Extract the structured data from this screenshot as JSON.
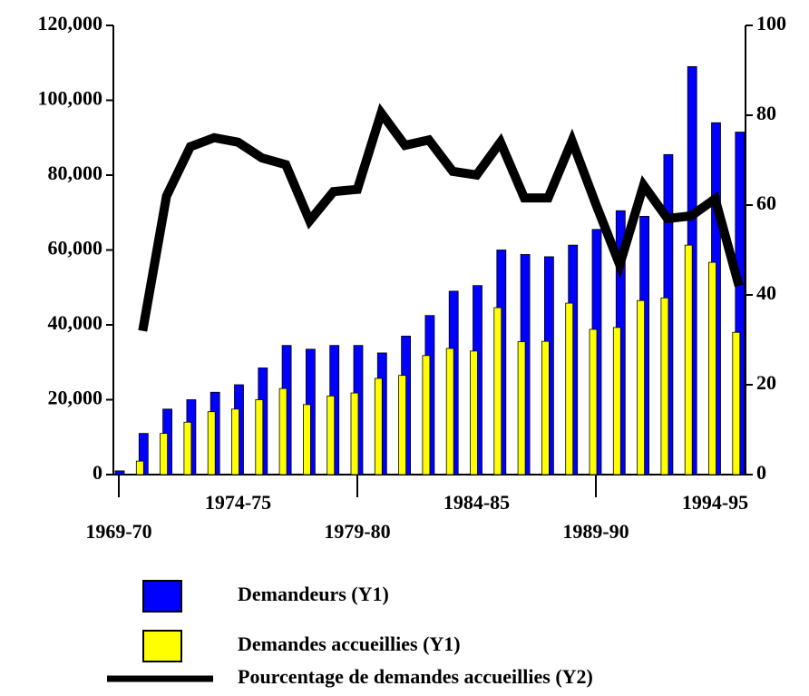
{
  "chart_data": {
    "type": "bar",
    "categories": [
      "1969-70",
      null,
      null,
      null,
      null,
      "1974-75",
      null,
      null,
      null,
      null,
      "1979-80",
      null,
      null,
      null,
      null,
      "1984-85",
      null,
      null,
      null,
      null,
      "1989-90",
      null,
      null,
      null,
      null,
      "1994-95",
      null
    ],
    "series": [
      {
        "name": "Demandeurs (Y1)",
        "color": "#0000ff",
        "type": "bar",
        "values": [
          1000,
          11000,
          17500,
          20000,
          22000,
          24000,
          28500,
          34500,
          33500,
          34500,
          34500,
          32500,
          37000,
          42500,
          49000,
          50500,
          60000,
          58800,
          58200,
          61300,
          65500,
          70500,
          69000,
          85500,
          109000,
          94000,
          91500
        ]
      },
      {
        "name": "Demandes accueillies (Y1)",
        "color": "#ffff00",
        "type": "bar",
        "values": [
          0,
          3600,
          11000,
          14000,
          16800,
          17500,
          20000,
          23000,
          18700,
          21000,
          21800,
          25700,
          26500,
          31800,
          33700,
          33000,
          44600,
          35500,
          35600,
          45800,
          38800,
          39300,
          46500,
          47200,
          61300,
          56700,
          38000
        ]
      },
      {
        "name": "Pourcentage de demandes accueillies (Y2)",
        "color": "#000000",
        "type": "line",
        "axis": "y2",
        "values": [
          null,
          32,
          62,
          73,
          75,
          74,
          70.5,
          69,
          56.5,
          63,
          63.5,
          80.5,
          73.3,
          74.5,
          67.5,
          66.7,
          74,
          61.6,
          61.6,
          74.3,
          60.2,
          46.7,
          64.4,
          57,
          57.6,
          61.4,
          42
        ]
      }
    ],
    "ylim": [
      0,
      120000
    ],
    "yticks": [
      0,
      {
        "value": 20000,
        "label": "20,000"
      },
      {
        "value": 40000,
        "label": "40,000"
      },
      {
        "value": 60000,
        "label": "60,000"
      },
      {
        "value": 80000,
        "label": "80,000"
      },
      {
        "value": 100000,
        "label": "100,000"
      },
      {
        "value": 120000,
        "label": "120,000"
      }
    ],
    "y2lim": [
      0,
      100
    ],
    "y2ticks": [
      0,
      20,
      40,
      60,
      80,
      100
    ],
    "legend": "bottom"
  }
}
